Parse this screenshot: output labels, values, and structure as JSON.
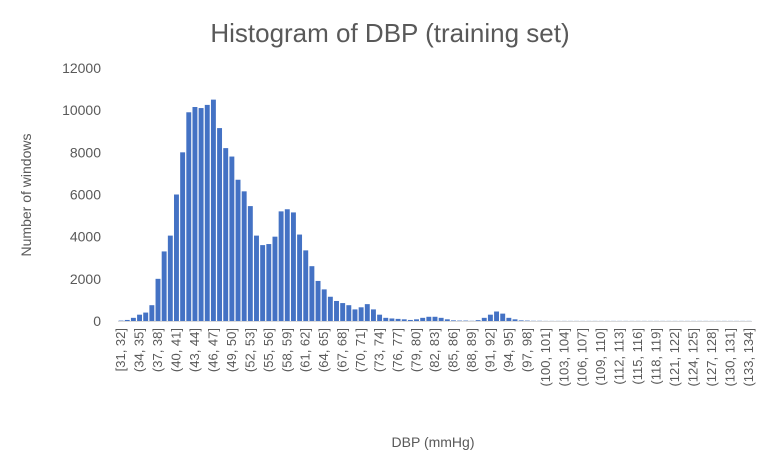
{
  "chart_data": {
    "type": "bar",
    "title": "Histogram of DBP (training set)",
    "xlabel": "DBP (mmHg)",
    "ylabel": "Number of windows",
    "ylim": [
      0,
      12000
    ],
    "yticks": [
      0,
      2000,
      4000,
      6000,
      8000,
      10000,
      12000
    ],
    "grid": false,
    "color": "#4472C4",
    "categories": [
      "[31, 32]",
      "(32, 33]",
      "(33, 34]",
      "(34, 35]",
      "(35, 36]",
      "(36, 37]",
      "(37, 38]",
      "(38, 39]",
      "(39, 40]",
      "(40, 41]",
      "(41, 42]",
      "(42, 43]",
      "(43, 44]",
      "(44, 45]",
      "(45, 46]",
      "(46, 47]",
      "(47, 48]",
      "(48, 49]",
      "(49, 50]",
      "(50, 51]",
      "(51, 52]",
      "(52, 53]",
      "(53, 54]",
      "(54, 55]",
      "(55, 56]",
      "(56, 57]",
      "(57, 58]",
      "(58, 59]",
      "(59, 60]",
      "(60, 61]",
      "(61, 62]",
      "(62, 63]",
      "(63, 64]",
      "(64, 65]",
      "(65, 66]",
      "(66, 67]",
      "(67, 68]",
      "(68, 69]",
      "(69, 70]",
      "(70, 71]",
      "(71, 72]",
      "(72, 73]",
      "(73, 74]",
      "(74, 75]",
      "(75, 76]",
      "(76, 77]",
      "(77, 78]",
      "(78, 79]",
      "(79, 80]",
      "(80, 81]",
      "(81, 82]",
      "(82, 83]",
      "(83, 84]",
      "(84, 85]",
      "(85, 86]",
      "(86, 87]",
      "(87, 88]",
      "(88, 89]",
      "(89, 90]",
      "(90, 91]",
      "(91, 92]",
      "(92, 93]",
      "(93, 94]",
      "(94, 95]",
      "(95, 96]",
      "(96, 97]",
      "(97, 98]",
      "(98, 99]",
      "(99, 100]",
      "(100, 101]",
      "(101, 102]",
      "(102, 103]",
      "(103, 104]",
      "(104, 105]",
      "(105, 106]",
      "(106, 107]",
      "(107, 108]",
      "(108, 109]",
      "(109, 110]",
      "(110, 111]",
      "(111, 112]",
      "(112, 113]",
      "(113, 114]",
      "(114, 115]",
      "(115, 116]",
      "(116, 117]",
      "(117, 118]",
      "(118, 119]",
      "(119, 120]",
      "(120, 121]",
      "(121, 122]",
      "(122, 123]",
      "(123, 124]",
      "(124, 125]",
      "(125, 126]",
      "(126, 127]",
      "(127, 128]",
      "(128, 129]",
      "(129, 130]",
      "(130, 131]",
      "(131, 132]",
      "(132, 133]",
      "(133, 134]"
    ],
    "values": [
      20,
      50,
      150,
      300,
      400,
      750,
      2000,
      3300,
      4050,
      6000,
      8000,
      9900,
      10150,
      10100,
      10250,
      10500,
      9150,
      8200,
      7800,
      6700,
      6150,
      5450,
      4050,
      3600,
      3650,
      4000,
      5200,
      5300,
      5150,
      4100,
      3350,
      2600,
      1900,
      1500,
      1150,
      950,
      850,
      750,
      550,
      650,
      800,
      550,
      300,
      150,
      120,
      100,
      80,
      50,
      80,
      150,
      200,
      200,
      150,
      80,
      30,
      20,
      20,
      10,
      40,
      150,
      300,
      450,
      350,
      150,
      80,
      30,
      20,
      10,
      10,
      5,
      5,
      5,
      5,
      5,
      5,
      5,
      5,
      5,
      5,
      5,
      5,
      5,
      5,
      5,
      5,
      5,
      5,
      5,
      5,
      5,
      5,
      5,
      5,
      5,
      5,
      5,
      5,
      5,
      5,
      5,
      5,
      5,
      5
    ],
    "tick_every": 3
  }
}
